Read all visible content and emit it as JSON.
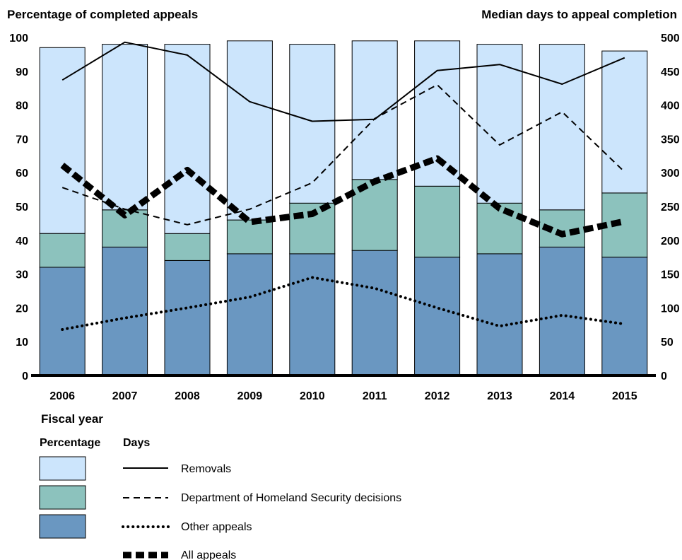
{
  "chart_data": {
    "type": "bar",
    "title": "",
    "left_axis_title": "Percentage of completed appeals",
    "right_axis_title": "Median days to appeal completion",
    "xlabel": "Fiscal year",
    "categories": [
      "2006",
      "2007",
      "2008",
      "2009",
      "2010",
      "2011",
      "2012",
      "2013",
      "2014",
      "2015"
    ],
    "ylim_left": [
      0,
      100
    ],
    "yticks_left": [
      "0",
      "10",
      "20",
      "30",
      "40",
      "50",
      "60",
      "70",
      "80",
      "90",
      "100"
    ],
    "ylim_right": [
      0,
      500
    ],
    "yticks_right": [
      "0",
      "50",
      "100",
      "150",
      "200",
      "250",
      "300",
      "350",
      "400",
      "450",
      "500"
    ],
    "stacked_bars": [
      {
        "name": "Other appeals",
        "color": "#6a97c1",
        "values": [
          32,
          38,
          34,
          36,
          36,
          37,
          35,
          36,
          38,
          35
        ]
      },
      {
        "name": "Department of Homeland Security decisions",
        "color": "#8cc2bd",
        "values": [
          10,
          11,
          8,
          10,
          15,
          21,
          21,
          15,
          11,
          19
        ]
      },
      {
        "name": "Removals",
        "color": "#cce5fc",
        "values": [
          55,
          49,
          56,
          53,
          47,
          41,
          43,
          47,
          49,
          42
        ]
      }
    ],
    "line_series": [
      {
        "name": "Removals",
        "style": "solid",
        "values": [
          437,
          493,
          474,
          405,
          376,
          379,
          451,
          460,
          431,
          470
        ]
      },
      {
        "name": "Department of Homeland Security decisions",
        "style": "dashed",
        "values": [
          278,
          246,
          223,
          246,
          285,
          380,
          430,
          341,
          390,
          301
        ]
      },
      {
        "name": "Other appeals",
        "style": "dotted",
        "values": [
          68,
          85,
          100,
          116,
          145,
          129,
          100,
          73,
          89,
          76
        ]
      },
      {
        "name": "All appeals",
        "style": "thick-dashed",
        "values": [
          311,
          237,
          304,
          227,
          239,
          287,
          321,
          247,
          209,
          228
        ]
      }
    ],
    "legend": {
      "percentage_heading": "Percentage",
      "days_heading": "Days",
      "bar_entries": [
        "Removals",
        "Department of Homeland Security decisions",
        "Other appeals"
      ],
      "line_entries": [
        "Removals",
        "Department of Homeland Security decisions",
        "Other appeals",
        "All appeals"
      ],
      "placement": "bottom-left"
    },
    "grid": false
  }
}
